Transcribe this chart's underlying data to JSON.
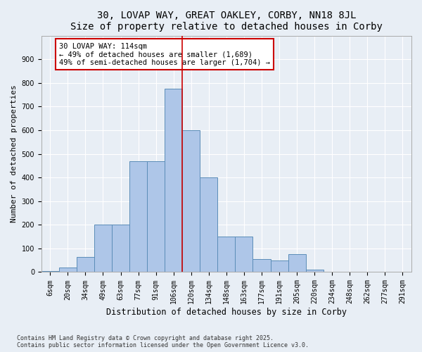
{
  "title": "30, LOVAP WAY, GREAT OAKLEY, CORBY, NN18 8JL",
  "subtitle": "Size of property relative to detached houses in Corby",
  "xlabel": "Distribution of detached houses by size in Corby",
  "ylabel": "Number of detached properties",
  "categories": [
    "6sqm",
    "20sqm",
    "34sqm",
    "49sqm",
    "63sqm",
    "77sqm",
    "91sqm",
    "106sqm",
    "120sqm",
    "134sqm",
    "148sqm",
    "163sqm",
    "177sqm",
    "191sqm",
    "205sqm",
    "220sqm",
    "234sqm",
    "248sqm",
    "262sqm",
    "277sqm",
    "291sqm"
  ],
  "values": [
    5,
    20,
    65,
    200,
    200,
    470,
    470,
    775,
    600,
    400,
    150,
    150,
    55,
    50,
    75,
    10,
    2,
    2,
    2,
    2,
    2
  ],
  "bar_color": "#aec6e8",
  "bar_edge_color": "#5b8db8",
  "vline_x": 7.5,
  "vline_color": "#cc0000",
  "annotation_text": "30 LOVAP WAY: 114sqm\n← 49% of detached houses are smaller (1,689)\n49% of semi-detached houses are larger (1,704) →",
  "annotation_box_color": "#ffffff",
  "annotation_box_edge": "#cc0000",
  "ylim": [
    0,
    1000
  ],
  "yticks": [
    0,
    100,
    200,
    300,
    400,
    500,
    600,
    700,
    800,
    900
  ],
  "background_color": "#e8eef5",
  "grid_color": "#ffffff",
  "footnote": "Contains HM Land Registry data © Crown copyright and database right 2025.\nContains public sector information licensed under the Open Government Licence v3.0.",
  "title_fontsize": 10,
  "xlabel_fontsize": 8.5,
  "ylabel_fontsize": 8,
  "tick_fontsize": 7,
  "annot_fontsize": 7.5,
  "footnote_fontsize": 6
}
